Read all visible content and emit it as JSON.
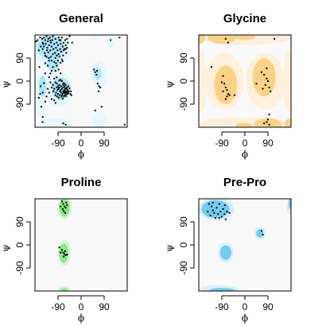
{
  "chart_data": [
    {
      "type": "scatter",
      "title": "General",
      "xlabel": "ϕ",
      "ylabel": "ψ",
      "xlim": [
        -180,
        180
      ],
      "ylim": [
        -180,
        180
      ],
      "xticks": [
        -90,
        0,
        90
      ],
      "xtick_labels": [
        "-90",
        "0",
        "90"
      ],
      "yticks": [
        -90,
        0,
        90
      ],
      "ytick_labels": [
        "-90",
        "0",
        "90"
      ],
      "colors": {
        "core": "#ace5fa",
        "allowed": "#e8f7fd",
        "background": "#f9f9f9",
        "points": "#000000"
      },
      "points": [
        [
          -160,
          170
        ],
        [
          -152,
          165
        ],
        [
          -150,
          150
        ],
        [
          -145,
          170
        ],
        [
          -140,
          160
        ],
        [
          -138,
          145
        ],
        [
          -135,
          175
        ],
        [
          -132,
          130
        ],
        [
          -130,
          155
        ],
        [
          -128,
          165
        ],
        [
          -125,
          140
        ],
        [
          -122,
          170
        ],
        [
          -120,
          120
        ],
        [
          -118,
          150
        ],
        [
          -115,
          135
        ],
        [
          -112,
          160
        ],
        [
          -110,
          175
        ],
        [
          -108,
          125
        ],
        [
          -105,
          145
        ],
        [
          -102,
          110
        ],
        [
          -100,
          165
        ],
        [
          -98,
          130
        ],
        [
          -95,
          150
        ],
        [
          -92,
          120
        ],
        [
          -90,
          140
        ],
        [
          -88,
          105
        ],
        [
          -85,
          160
        ],
        [
          -82,
          125
        ],
        [
          -80,
          145
        ],
        [
          -78,
          115
        ],
        [
          -75,
          170
        ],
        [
          -72,
          135
        ],
        [
          -70,
          100
        ],
        [
          -68,
          150
        ],
        [
          -65,
          125
        ],
        [
          -62,
          160
        ],
        [
          -60,
          140
        ],
        [
          -58,
          110
        ],
        [
          -55,
          130
        ],
        [
          -52,
          150
        ],
        [
          -150,
          125
        ],
        [
          -142,
          110
        ],
        [
          -135,
          95
        ],
        [
          -128,
          112
        ],
        [
          -145,
          135
        ],
        [
          -118,
          95
        ],
        [
          -110,
          105
        ],
        [
          -100,
          90
        ],
        [
          -95,
          100
        ],
        [
          -85,
          95
        ],
        [
          -75,
          85
        ],
        [
          -68,
          120
        ],
        [
          -60,
          125
        ],
        [
          -140,
          100
        ],
        [
          -133,
          120
        ],
        [
          -126,
          90
        ],
        [
          -148,
          145
        ],
        [
          -157,
          135
        ],
        [
          -165,
          120
        ],
        [
          -170,
          160
        ],
        [
          -115,
          80
        ],
        [
          -105,
          75
        ],
        [
          -98,
          70
        ],
        [
          -90,
          80
        ],
        [
          -80,
          72
        ],
        [
          -72,
          78
        ],
        [
          -163,
          55
        ],
        [
          -175,
          155
        ],
        [
          -120,
          158
        ],
        [
          -87,
          170
        ],
        [
          -95,
          -10
        ],
        [
          -90,
          -20
        ],
        [
          -88,
          -30
        ],
        [
          -85,
          -25
        ],
        [
          -82,
          -40
        ],
        [
          -80,
          -35
        ],
        [
          -78,
          -45
        ],
        [
          -75,
          -30
        ],
        [
          -72,
          -50
        ],
        [
          -70,
          -40
        ],
        [
          -68,
          -45
        ],
        [
          -66,
          -35
        ],
        [
          -65,
          -42
        ],
        [
          -63,
          -38
        ],
        [
          -62,
          -48
        ],
        [
          -60,
          -40
        ],
        [
          -58,
          -45
        ],
        [
          -57,
          -30
        ],
        [
          -55,
          -50
        ],
        [
          -53,
          -42
        ],
        [
          -100,
          -5
        ],
        [
          -95,
          -25
        ],
        [
          -92,
          -35
        ],
        [
          -85,
          -15
        ],
        [
          -78,
          -20
        ],
        [
          -74,
          -55
        ],
        [
          -70,
          -25
        ],
        [
          -65,
          -20
        ],
        [
          -63,
          -55
        ],
        [
          -60,
          -30
        ],
        [
          -58,
          -58
        ],
        [
          -56,
          -25
        ],
        [
          -52,
          -35
        ],
        [
          -50,
          -48
        ],
        [
          -48,
          -40
        ],
        [
          -110,
          -15
        ],
        [
          -105,
          -30
        ],
        [
          -98,
          -45
        ],
        [
          -90,
          -50
        ],
        [
          -83,
          -55
        ],
        [
          -77,
          -60
        ],
        [
          -120,
          -5
        ],
        [
          -115,
          -25
        ],
        [
          -108,
          -40
        ],
        [
          -100,
          -55
        ],
        [
          -93,
          -60
        ],
        [
          -87,
          -65
        ],
        [
          -67,
          -60
        ],
        [
          -62,
          -28
        ],
        [
          -70,
          -15
        ],
        [
          -145,
          -8
        ],
        [
          -150,
          -45
        ],
        [
          -105,
          10
        ],
        [
          -95,
          15
        ],
        [
          -80,
          5
        ],
        [
          -70,
          -8
        ],
        [
          -65,
          -10
        ],
        [
          -75,
          0
        ],
        [
          -85,
          2
        ],
        [
          -60,
          -15
        ],
        [
          -130,
          -30
        ],
        [
          -125,
          -45
        ],
        [
          -135,
          -60
        ],
        [
          -160,
          -50
        ],
        [
          -115,
          -70
        ],
        [
          -105,
          -75
        ],
        [
          -100,
          -85
        ],
        [
          -140,
          -80
        ],
        [
          -150,
          -160
        ],
        [
          -72,
          -68
        ],
        [
          50,
          45
        ],
        [
          55,
          35
        ],
        [
          60,
          25
        ],
        [
          62,
          40
        ],
        [
          65,
          -10
        ],
        [
          70,
          -20
        ],
        [
          75,
          -25
        ],
        [
          68,
          -40
        ],
        [
          80,
          -100
        ],
        [
          55,
          -115
        ],
        [
          -70,
          -165
        ],
        [
          -60,
          -170
        ],
        [
          -150,
          -140
        ],
        [
          -155,
          -100
        ],
        [
          -165,
          -65
        ],
        [
          -158,
          -20
        ],
        [
          -140,
          30
        ],
        [
          -120,
          30
        ],
        [
          115,
          160
        ],
        [
          150,
          170
        ],
        [
          170,
          -170
        ],
        [
          -80,
          160
        ],
        [
          -55,
          165
        ],
        [
          -45,
          175
        ],
        [
          -35,
          150
        ],
        [
          -42,
          -50
        ],
        [
          -45,
          -28
        ],
        [
          -50,
          -20
        ],
        [
          -40,
          -40
        ],
        [
          -38,
          -55
        ],
        [
          -100,
          40
        ],
        [
          -110,
          55
        ],
        [
          -88,
          45
        ],
        [
          -95,
          60
        ],
        [
          -80,
          30
        ],
        [
          -130,
          60
        ],
        [
          -125,
          80
        ],
        [
          -140,
          70
        ],
        [
          -115,
          40
        ],
        [
          -125,
          15
        ]
      ]
    },
    {
      "type": "scatter",
      "title": "Glycine",
      "xlabel": "ϕ",
      "ylabel": "ψ",
      "xlim": [
        -180,
        180
      ],
      "ylim": [
        -180,
        180
      ],
      "xticks": [
        -90,
        0,
        90
      ],
      "xtick_labels": [
        "-90",
        "0",
        "90"
      ],
      "yticks": [
        -90,
        0,
        90
      ],
      "ytick_labels": [
        "-90",
        "0",
        "90"
      ],
      "colors": {
        "core": "#fcd288",
        "allowed": "#fdf0dc",
        "background": "#f9f9f9",
        "points": "#000000"
      },
      "points": [
        [
          -75,
          165
        ],
        [
          -65,
          150
        ],
        [
          -85,
          20
        ],
        [
          -90,
          -5
        ],
        [
          -80,
          -10
        ],
        [
          -75,
          -25
        ],
        [
          -70,
          -35
        ],
        [
          -65,
          -50
        ],
        [
          -85,
          -40
        ],
        [
          -60,
          -55
        ],
        [
          -70,
          -60
        ],
        [
          -75,
          -70
        ],
        [
          85,
          10
        ],
        [
          80,
          -15
        ],
        [
          70,
          -30
        ],
        [
          90,
          0
        ],
        [
          75,
          25
        ],
        [
          95,
          -25
        ],
        [
          100,
          -40
        ],
        [
          85,
          50
        ],
        [
          95,
          -130
        ],
        [
          90,
          -150
        ],
        [
          85,
          -160
        ],
        [
          75,
          -165
        ],
        [
          95,
          -170
        ],
        [
          115,
          165
        ],
        [
          45,
          -10
        ],
        [
          65,
          35
        ],
        [
          -130,
          55
        ],
        [
          -40,
          -55
        ]
      ]
    },
    {
      "type": "scatter",
      "title": "Proline",
      "xlabel": "ϕ",
      "ylabel": "ψ",
      "xlim": [
        -180,
        180
      ],
      "ylim": [
        -180,
        180
      ],
      "xticks": [
        -90,
        0,
        90
      ],
      "xtick_labels": [
        "-90",
        "0",
        "90"
      ],
      "yticks": [
        -90,
        0,
        90
      ],
      "ytick_labels": [
        "-90",
        "0",
        "90"
      ],
      "colors": {
        "core": "#8ae88a",
        "allowed": "#d6f6d6",
        "background": "#f9f9f9",
        "points": "#000000"
      },
      "points": [
        [
          -75,
          170
        ],
        [
          -70,
          160
        ],
        [
          -65,
          150
        ],
        [
          -60,
          145
        ],
        [
          -72,
          140
        ],
        [
          -68,
          132
        ],
        [
          -58,
          165
        ],
        [
          -80,
          150
        ],
        [
          -62,
          125
        ],
        [
          -55,
          155
        ],
        [
          -85,
          -10
        ],
        [
          -75,
          -20
        ],
        [
          -70,
          -30
        ],
        [
          -65,
          -35
        ],
        [
          -60,
          -40
        ],
        [
          -80,
          -30
        ],
        [
          -62,
          -25
        ],
        [
          -55,
          -38
        ],
        [
          -68,
          -45
        ]
      ]
    },
    {
      "type": "scatter",
      "title": "Pre-Pro",
      "xlabel": "ϕ",
      "ylabel": "ψ",
      "xlim": [
        -180,
        180
      ],
      "ylim": [
        -180,
        180
      ],
      "xticks": [
        -90,
        0,
        90
      ],
      "xtick_labels": [
        "-90",
        "0",
        "90"
      ],
      "yticks": [
        -90,
        0,
        90
      ],
      "ytick_labels": [
        "-90",
        "0",
        "90"
      ],
      "colors": {
        "core": "#74ccef",
        "allowed": "#d8f0fb",
        "background": "#f9f9f9",
        "points": "#000000"
      },
      "points": [
        [
          -140,
          160
        ],
        [
          -130,
          150
        ],
        [
          -125,
          135
        ],
        [
          -120,
          125
        ],
        [
          -110,
          145
        ],
        [
          -105,
          120
        ],
        [
          -100,
          105
        ],
        [
          -95,
          130
        ],
        [
          -90,
          110
        ],
        [
          -85,
          140
        ],
        [
          -80,
          120
        ],
        [
          -75,
          100
        ],
        [
          -70,
          130
        ],
        [
          -135,
          115
        ],
        [
          -115,
          105
        ],
        [
          -145,
          130
        ],
        [
          -60,
          125
        ],
        [
          -100,
          160
        ],
        [
          -125,
          165
        ],
        [
          -78,
          155
        ],
        [
          65,
          55
        ],
        [
          70,
          40
        ]
      ]
    }
  ]
}
